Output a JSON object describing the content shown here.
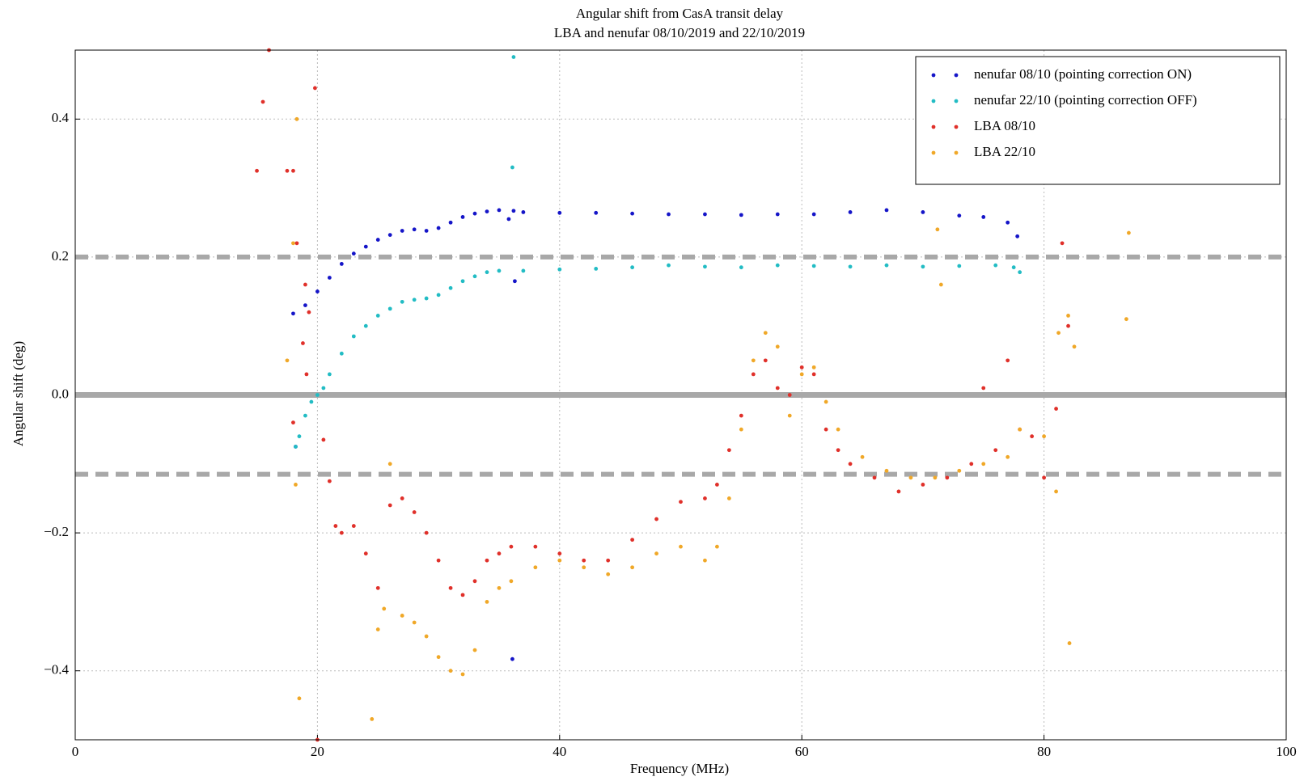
{
  "chart_data": {
    "type": "scatter",
    "title": "Angular shift from CasA transit delay",
    "subtitle": "LBA and nenufar 08/10/2019 and 22/10/2019",
    "x_label": "Frequency (MHz)",
    "y_label": "Angular shift (deg)",
    "xlim": [
      0,
      100
    ],
    "ylim": [
      -0.5,
      0.5
    ],
    "xticks": [
      0,
      20,
      40,
      60,
      80,
      100
    ],
    "yticks": [
      {
        "value": -0.4,
        "label": "−0.4"
      },
      {
        "value": -0.2,
        "label": "−0.2"
      },
      {
        "value": 0,
        "label": "0.0"
      },
      0.2,
      0.4
    ],
    "grid": true,
    "legend": "upper right",
    "hlines": [
      {
        "y": 0.2,
        "style": "dashed"
      },
      {
        "y": 0,
        "style": "solid"
      },
      {
        "y": -0.115,
        "style": "dashed"
      }
    ],
    "series": [
      {
        "name": "nenufar 08/10 (pointing correction ON)",
        "color": "#1515c8",
        "x": [
          18,
          19,
          20,
          21,
          22,
          23,
          24,
          25,
          26,
          27,
          28,
          29,
          30,
          31,
          32,
          33,
          34,
          35,
          35.8,
          36.2,
          37,
          40,
          43,
          46,
          49,
          52,
          55,
          58,
          61,
          64,
          67,
          70,
          73,
          75,
          77,
          77.8,
          36.3,
          36.1,
          18.2
        ],
        "values": [
          0.118,
          0.13,
          0.15,
          0.17,
          0.19,
          0.205,
          0.215,
          0.225,
          0.232,
          0.238,
          0.24,
          0.238,
          0.242,
          0.25,
          0.258,
          0.263,
          0.266,
          0.268,
          0.255,
          0.267,
          0.265,
          0.264,
          0.264,
          0.263,
          0.262,
          0.262,
          0.261,
          0.262,
          0.262,
          0.265,
          0.268,
          0.265,
          0.26,
          0.258,
          0.25,
          0.23,
          0.165,
          -0.383,
          -0.075
        ]
      },
      {
        "name": "nenufar 22/10 (pointing correction OFF)",
        "color": "#22bcc4",
        "x": [
          18.2,
          18.5,
          19,
          19.5,
          20,
          20.5,
          21,
          22,
          23,
          24,
          25,
          26,
          27,
          28,
          29,
          30,
          31,
          32,
          33,
          34,
          35,
          36.2,
          36.1,
          37,
          40,
          43,
          46,
          49,
          52,
          55,
          58,
          61,
          64,
          67,
          70,
          73,
          76,
          77.5,
          78
        ],
        "values": [
          -0.075,
          -0.06,
          -0.03,
          -0.01,
          0.0,
          0.01,
          0.03,
          0.06,
          0.085,
          0.1,
          0.115,
          0.125,
          0.135,
          0.138,
          0.14,
          0.145,
          0.155,
          0.165,
          0.172,
          0.178,
          0.18,
          0.49,
          0.33,
          0.18,
          0.182,
          0.183,
          0.185,
          0.188,
          0.186,
          0.185,
          0.188,
          0.187,
          0.186,
          0.188,
          0.186,
          0.187,
          0.188,
          0.185,
          0.178
        ]
      },
      {
        "name": "LBA 08/10",
        "color": "#e0302a",
        "x": [
          15,
          15.5,
          16,
          17.5,
          18,
          18.3,
          19,
          19.3,
          18.8,
          19.1,
          18,
          19.8,
          20,
          20.5,
          21,
          21.5,
          22,
          23,
          24,
          25,
          26,
          27,
          28,
          29,
          30,
          31,
          32,
          33,
          34,
          35,
          36,
          38,
          40,
          42,
          44,
          46,
          48,
          50,
          52,
          53,
          54,
          55,
          56,
          57,
          58,
          59,
          60,
          61,
          62,
          63,
          64,
          66,
          68,
          70,
          72,
          74,
          75,
          76,
          77,
          78,
          79,
          80,
          81,
          81.5,
          82
        ],
        "values": [
          0.325,
          0.425,
          0.5,
          0.325,
          0.325,
          0.22,
          0.16,
          0.12,
          0.075,
          0.03,
          -0.04,
          0.445,
          -0.5,
          -0.065,
          -0.125,
          -0.19,
          -0.2,
          -0.19,
          -0.23,
          -0.28,
          -0.16,
          -0.15,
          -0.17,
          -0.2,
          -0.24,
          -0.28,
          -0.29,
          -0.27,
          -0.24,
          -0.23,
          -0.22,
          -0.22,
          -0.23,
          -0.24,
          -0.24,
          -0.21,
          -0.18,
          -0.155,
          -0.15,
          -0.13,
          -0.08,
          -0.03,
          0.03,
          0.05,
          0.01,
          0.0,
          0.04,
          0.03,
          -0.05,
          -0.08,
          -0.1,
          -0.12,
          -0.14,
          -0.13,
          -0.12,
          -0.1,
          0.01,
          -0.08,
          0.05,
          -0.05,
          -0.06,
          -0.12,
          -0.02,
          0.22,
          0.1
        ]
      },
      {
        "name": "LBA 22/10",
        "color": "#f0a828",
        "x": [
          17.5,
          18,
          18.2,
          18.5,
          18.3,
          24.5,
          25,
          25.5,
          26,
          27,
          28,
          29,
          30,
          31,
          32,
          33,
          34,
          35,
          36,
          38,
          40,
          42,
          44,
          46,
          48,
          50,
          52,
          53,
          54,
          55,
          56,
          57,
          58,
          59,
          60,
          61,
          62,
          63,
          65,
          67,
          69,
          71,
          71.2,
          71.5,
          73,
          75,
          77,
          78,
          80,
          81,
          81.2,
          82,
          82.5,
          82.1,
          87,
          86.8
        ],
        "values": [
          0.05,
          0.22,
          -0.13,
          -0.44,
          0.4,
          -0.47,
          -0.34,
          -0.31,
          -0.1,
          -0.32,
          -0.33,
          -0.35,
          -0.38,
          -0.4,
          -0.405,
          -0.37,
          -0.3,
          -0.28,
          -0.27,
          -0.25,
          -0.24,
          -0.25,
          -0.26,
          -0.25,
          -0.23,
          -0.22,
          -0.24,
          -0.22,
          -0.15,
          -0.05,
          0.05,
          0.09,
          0.07,
          -0.03,
          0.03,
          0.04,
          -0.01,
          -0.05,
          -0.09,
          -0.11,
          -0.12,
          -0.12,
          0.24,
          0.16,
          -0.11,
          -0.1,
          -0.09,
          -0.05,
          -0.06,
          -0.14,
          0.09,
          0.115,
          0.07,
          -0.36,
          0.235,
          0.11
        ]
      }
    ]
  }
}
